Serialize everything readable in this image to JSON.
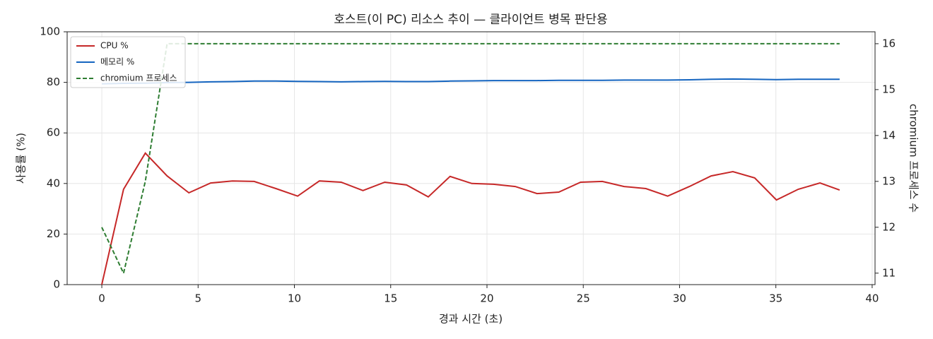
{
  "chart_data": {
    "type": "line",
    "title": "호스트(이 PC) 리소스 추이 — 클라이언트 병목 판단용",
    "xlabel": "경과 시간 (초)",
    "ylabel": "사용률 (%)",
    "y2label": "chromium 프로세스 수",
    "x": [
      0,
      1.13,
      2.26,
      3.39,
      4.52,
      5.65,
      6.78,
      7.91,
      9.04,
      10.17,
      11.3,
      12.43,
      13.56,
      14.69,
      15.82,
      16.95,
      18.08,
      19.21,
      20.34,
      21.47,
      22.6,
      23.73,
      24.86,
      25.99,
      27.12,
      28.25,
      29.38,
      30.51,
      31.64,
      32.77,
      33.9,
      35.03,
      36.16,
      37.29,
      38.31
    ],
    "series": [
      {
        "name": "CPU %",
        "color": "#c62828",
        "dash": false,
        "values": [
          0,
          37.7,
          52,
          43,
          36.3,
          40.2,
          41,
          40.8,
          38,
          35,
          41,
          40.5,
          37.2,
          40.5,
          39.4,
          34.7,
          42.8,
          40,
          39.7,
          38.8,
          36,
          36.6,
          40.5,
          40.8,
          38.8,
          38,
          35,
          38.8,
          43,
          44.7,
          42.2,
          33.5,
          37.7,
          40.2,
          37.4
        ]
      },
      {
        "name": "메모리 %",
        "color": "#1565c0",
        "dash": false,
        "values": [
          79.4,
          79.6,
          79.7,
          79.9,
          80.0,
          80.2,
          80.3,
          80.5,
          80.5,
          80.4,
          80.3,
          80.2,
          80.3,
          80.4,
          80.3,
          80.3,
          80.5,
          80.6,
          80.7,
          80.7,
          80.7,
          80.8,
          80.8,
          80.8,
          80.9,
          80.9,
          80.9,
          81.0,
          81.2,
          81.3,
          81.2,
          81.1,
          81.2,
          81.2,
          81.2
        ]
      },
      {
        "name": "chromium 프로세스",
        "color": "#2e7d32",
        "dash": true,
        "axis": "y2",
        "values": [
          12,
          11,
          13,
          16,
          16,
          16,
          16,
          16,
          16,
          16,
          16,
          16,
          16,
          16,
          16,
          16,
          16,
          16,
          16,
          16,
          16,
          16,
          16,
          16,
          16,
          16,
          16,
          16,
          16,
          16,
          16,
          16,
          16,
          16,
          16
        ]
      }
    ],
    "xlim": [
      -1.8,
      40.15
    ],
    "xticks": [
      0,
      5,
      10,
      15,
      20,
      25,
      30,
      35,
      40
    ],
    "ylim": [
      0,
      100
    ],
    "yticks": [
      0,
      20,
      40,
      60,
      80,
      100
    ],
    "y2lim": [
      10.75,
      16.26
    ],
    "y2ticks": [
      11,
      12,
      13,
      14,
      15,
      16
    ],
    "grid": true,
    "legend": "upper-left"
  }
}
